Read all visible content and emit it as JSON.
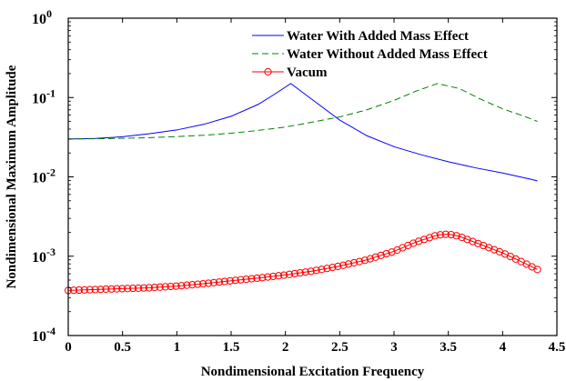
{
  "chart_data": {
    "type": "line",
    "xlabel": "Nondimensional Excitation Frequency",
    "ylabel": "Nondimensional Maximum Amplitude",
    "xlim": [
      0,
      4.5
    ],
    "ylim": [
      0.0001,
      1
    ],
    "yscale": "log",
    "grid": false,
    "legend_position": "top-right",
    "x_ticks": [
      "0",
      "0.5",
      "1",
      "1.5",
      "2",
      "2.5",
      "3",
      "3.5",
      "4",
      "4.5"
    ],
    "y_ticks": [
      {
        "base": "10",
        "exp": "-4"
      },
      {
        "base": "10",
        "exp": "-3"
      },
      {
        "base": "10",
        "exp": "-2"
      },
      {
        "base": "10",
        "exp": "-1"
      },
      {
        "base": "10",
        "exp": "0"
      }
    ],
    "series": [
      {
        "name": "Water With Added Mass Effect",
        "color": "#0000ff",
        "style": "solid",
        "x": [
          0,
          0.25,
          0.5,
          0.75,
          1.0,
          1.25,
          1.5,
          1.75,
          1.9,
          2.05,
          2.2,
          2.5,
          2.75,
          3.0,
          3.25,
          3.5,
          3.75,
          4.0,
          4.25,
          4.32
        ],
        "y": [
          0.03,
          0.0305,
          0.032,
          0.035,
          0.039,
          0.046,
          0.058,
          0.082,
          0.11,
          0.15,
          0.105,
          0.052,
          0.033,
          0.024,
          0.019,
          0.0155,
          0.013,
          0.0112,
          0.0094,
          0.0089
        ]
      },
      {
        "name": "Water Without Added Mass Effect",
        "color": "#008000",
        "style": "dashed",
        "x": [
          0,
          0.25,
          0.5,
          0.75,
          1.0,
          1.25,
          1.5,
          1.75,
          2.0,
          2.25,
          2.5,
          2.75,
          3.0,
          3.2,
          3.4,
          3.6,
          3.8,
          4.0,
          4.2,
          4.32
        ],
        "y": [
          0.03,
          0.0302,
          0.0306,
          0.0312,
          0.0322,
          0.0335,
          0.0355,
          0.0385,
          0.0425,
          0.049,
          0.057,
          0.07,
          0.092,
          0.12,
          0.15,
          0.13,
          0.095,
          0.072,
          0.058,
          0.05
        ]
      },
      {
        "name": "Vacum",
        "color": "#ff0000",
        "style": "line-circle-markers",
        "x": [
          0,
          0.25,
          0.5,
          0.75,
          1.0,
          1.25,
          1.5,
          1.75,
          2.0,
          2.25,
          2.5,
          2.75,
          3.0,
          3.2,
          3.4,
          3.5,
          3.6,
          3.8,
          4.0,
          4.2,
          4.32
        ],
        "y": [
          0.00037,
          0.00038,
          0.00039,
          0.0004,
          0.00042,
          0.00045,
          0.00049,
          0.00053,
          0.00058,
          0.00065,
          0.00075,
          0.0009,
          0.00115,
          0.0015,
          0.00185,
          0.0019,
          0.00178,
          0.0014,
          0.0011,
          0.00082,
          0.00068
        ]
      }
    ]
  }
}
